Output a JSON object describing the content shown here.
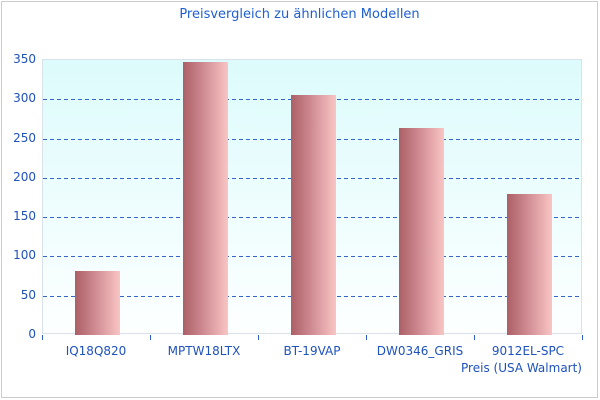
{
  "window": {
    "border_color": "#cccccc",
    "background": "#ffffff"
  },
  "chart_data": {
    "type": "bar",
    "title": "Preisvergleich zu ähnlichen Modellen",
    "xlabel": "Preis (USA Walmart)",
    "ylabel": "",
    "categories": [
      "IQ18Q820",
      "MPTW18LTX",
      "BT-19VAP",
      "DW0346_GRIS",
      "9012EL-SPC"
    ],
    "values": [
      81,
      347,
      305,
      263,
      180
    ],
    "ylim": [
      0,
      350
    ],
    "yticks": [
      0,
      50,
      100,
      150,
      200,
      250,
      300,
      350
    ],
    "grid": "horizontal-dashed",
    "legend": "none",
    "colors": {
      "title_text": "#1f5fd0",
      "axis_text": "#1e52bc",
      "gridline": "#3465c8",
      "tick_mark": "#2f62c4",
      "plot_bg_top": "#ddfbfc",
      "plot_bg_bottom": "#fdffff",
      "plot_border": "#d9e2e8",
      "bar_gradient_left": "#ac5f66",
      "bar_gradient_mid": "#cf8b92",
      "bar_gradient_right": "#f9c5c4"
    }
  }
}
